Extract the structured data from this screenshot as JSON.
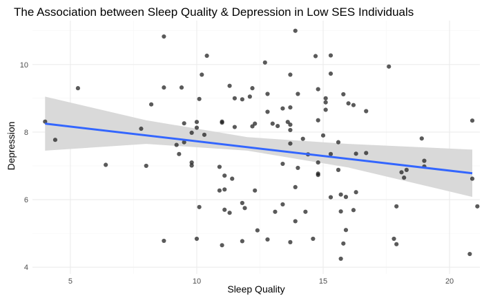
{
  "chart_data": {
    "type": "scatter",
    "title": "The Association between Sleep Quality & Depression in Low SES Individuals",
    "xlabel": "Sleep Quality",
    "ylabel": "Depression",
    "xlim": [
      3.5,
      21.2
    ],
    "ylim": [
      3.8,
      11.3
    ],
    "x_ticks": [
      5,
      10,
      15,
      20
    ],
    "y_ticks": [
      4,
      6,
      8,
      10
    ],
    "grid": true,
    "colors": {
      "panel_background": "#ffffff",
      "grid_major": "#ebebeb",
      "grid_minor": "#f5f5f5",
      "points": "#1a1a1a",
      "trend_line": "#3366ff",
      "confidence_band": "#d9d9d9"
    },
    "trend_line": {
      "x": [
        4.0,
        20.9
      ],
      "y": [
        8.25,
        6.78
      ]
    },
    "confidence_band": {
      "x": [
        4.0,
        8.0,
        12.0,
        16.0,
        20.9
      ],
      "upper": [
        9.05,
        8.35,
        7.85,
        7.65,
        7.48
      ],
      "lower": [
        7.45,
        7.65,
        7.45,
        6.95,
        6.08
      ]
    },
    "points": [
      {
        "x": 4.0,
        "y": 8.31
      },
      {
        "x": 4.4,
        "y": 7.77
      },
      {
        "x": 5.3,
        "y": 9.3
      },
      {
        "x": 6.4,
        "y": 7.03
      },
      {
        "x": 7.8,
        "y": 8.1
      },
      {
        "x": 8.0,
        "y": 7.0
      },
      {
        "x": 8.2,
        "y": 8.82
      },
      {
        "x": 8.7,
        "y": 10.83
      },
      {
        "x": 8.7,
        "y": 9.32
      },
      {
        "x": 8.7,
        "y": 4.78
      },
      {
        "x": 9.2,
        "y": 7.62
      },
      {
        "x": 9.3,
        "y": 7.35
      },
      {
        "x": 9.4,
        "y": 9.32
      },
      {
        "x": 9.5,
        "y": 8.26
      },
      {
        "x": 9.5,
        "y": 7.7
      },
      {
        "x": 9.8,
        "y": 7.98
      },
      {
        "x": 9.8,
        "y": 7.1
      },
      {
        "x": 9.8,
        "y": 7.01
      },
      {
        "x": 10.0,
        "y": 8.3
      },
      {
        "x": 10.0,
        "y": 8.13
      },
      {
        "x": 10.1,
        "y": 8.98
      },
      {
        "x": 10.0,
        "y": 4.84
      },
      {
        "x": 10.2,
        "y": 9.7
      },
      {
        "x": 10.3,
        "y": 7.92
      },
      {
        "x": 10.4,
        "y": 10.26
      },
      {
        "x": 10.1,
        "y": 5.78
      },
      {
        "x": 10.9,
        "y": 6.97
      },
      {
        "x": 10.9,
        "y": 6.27
      },
      {
        "x": 11.0,
        "y": 8.31
      },
      {
        "x": 11.0,
        "y": 8.28
      },
      {
        "x": 11.1,
        "y": 6.71
      },
      {
        "x": 11.0,
        "y": 4.65
      },
      {
        "x": 11.1,
        "y": 6.3
      },
      {
        "x": 11.1,
        "y": 5.7
      },
      {
        "x": 11.3,
        "y": 9.37
      },
      {
        "x": 11.3,
        "y": 5.61
      },
      {
        "x": 11.4,
        "y": 6.62
      },
      {
        "x": 11.5,
        "y": 8.15
      },
      {
        "x": 11.5,
        "y": 9.0
      },
      {
        "x": 11.8,
        "y": 8.97
      },
      {
        "x": 11.8,
        "y": 5.9
      },
      {
        "x": 11.9,
        "y": 5.75
      },
      {
        "x": 11.8,
        "y": 4.77
      },
      {
        "x": 12.1,
        "y": 9.05
      },
      {
        "x": 12.2,
        "y": 8.17
      },
      {
        "x": 12.2,
        "y": 9.3
      },
      {
        "x": 12.3,
        "y": 8.25
      },
      {
        "x": 12.3,
        "y": 6.27
      },
      {
        "x": 12.4,
        "y": 5.09
      },
      {
        "x": 12.7,
        "y": 10.06
      },
      {
        "x": 12.8,
        "y": 9.13
      },
      {
        "x": 12.8,
        "y": 8.6
      },
      {
        "x": 12.8,
        "y": 4.82
      },
      {
        "x": 13.0,
        "y": 8.25
      },
      {
        "x": 13.1,
        "y": 5.64
      },
      {
        "x": 13.2,
        "y": 8.18
      },
      {
        "x": 13.4,
        "y": 8.7
      },
      {
        "x": 13.4,
        "y": 7.06
      },
      {
        "x": 13.4,
        "y": 5.86
      },
      {
        "x": 13.6,
        "y": 8.3
      },
      {
        "x": 13.7,
        "y": 9.7
      },
      {
        "x": 13.7,
        "y": 8.73
      },
      {
        "x": 13.7,
        "y": 8.22
      },
      {
        "x": 13.7,
        "y": 8.06
      },
      {
        "x": 13.7,
        "y": 7.66
      },
      {
        "x": 13.7,
        "y": 4.74
      },
      {
        "x": 13.9,
        "y": 11.0
      },
      {
        "x": 13.9,
        "y": 6.37
      },
      {
        "x": 13.9,
        "y": 5.36
      },
      {
        "x": 14.0,
        "y": 9.13
      },
      {
        "x": 14.0,
        "y": 6.94
      },
      {
        "x": 14.2,
        "y": 7.8
      },
      {
        "x": 14.3,
        "y": 5.64
      },
      {
        "x": 14.4,
        "y": 7.34
      },
      {
        "x": 14.6,
        "y": 4.84
      },
      {
        "x": 14.7,
        "y": 10.25
      },
      {
        "x": 14.8,
        "y": 9.27
      },
      {
        "x": 14.8,
        "y": 8.35
      },
      {
        "x": 14.8,
        "y": 7.1
      },
      {
        "x": 14.8,
        "y": 6.77
      },
      {
        "x": 14.8,
        "y": 6.73
      },
      {
        "x": 15.0,
        "y": 7.9
      },
      {
        "x": 15.1,
        "y": 9.0
      },
      {
        "x": 15.1,
        "y": 8.88
      },
      {
        "x": 15.1,
        "y": 8.66
      },
      {
        "x": 15.3,
        "y": 10.27
      },
      {
        "x": 15.3,
        "y": 9.73
      },
      {
        "x": 15.3,
        "y": 7.35
      },
      {
        "x": 15.3,
        "y": 6.07
      },
      {
        "x": 15.6,
        "y": 7.7
      },
      {
        "x": 15.6,
        "y": 6.88
      },
      {
        "x": 15.7,
        "y": 6.15
      },
      {
        "x": 15.7,
        "y": 5.65
      },
      {
        "x": 15.7,
        "y": 4.25
      },
      {
        "x": 15.8,
        "y": 9.12
      },
      {
        "x": 15.8,
        "y": 4.7
      },
      {
        "x": 15.9,
        "y": 6.08
      },
      {
        "x": 15.9,
        "y": 5.1
      },
      {
        "x": 16.0,
        "y": 8.85
      },
      {
        "x": 16.2,
        "y": 8.8
      },
      {
        "x": 16.2,
        "y": 5.69
      },
      {
        "x": 16.3,
        "y": 6.22
      },
      {
        "x": 16.3,
        "y": 7.36
      },
      {
        "x": 16.7,
        "y": 8.62
      },
      {
        "x": 16.7,
        "y": 7.38
      },
      {
        "x": 17.6,
        "y": 9.94
      },
      {
        "x": 17.8,
        "y": 4.84
      },
      {
        "x": 17.9,
        "y": 5.8
      },
      {
        "x": 17.9,
        "y": 4.68
      },
      {
        "x": 18.1,
        "y": 6.81
      },
      {
        "x": 18.2,
        "y": 6.65
      },
      {
        "x": 18.3,
        "y": 6.88
      },
      {
        "x": 18.9,
        "y": 7.81
      },
      {
        "x": 19.0,
        "y": 7.15
      },
      {
        "x": 19.0,
        "y": 6.98
      },
      {
        "x": 20.8,
        "y": 4.39
      },
      {
        "x": 20.9,
        "y": 8.34
      },
      {
        "x": 20.9,
        "y": 6.62
      },
      {
        "x": 21.1,
        "y": 5.8
      }
    ]
  }
}
